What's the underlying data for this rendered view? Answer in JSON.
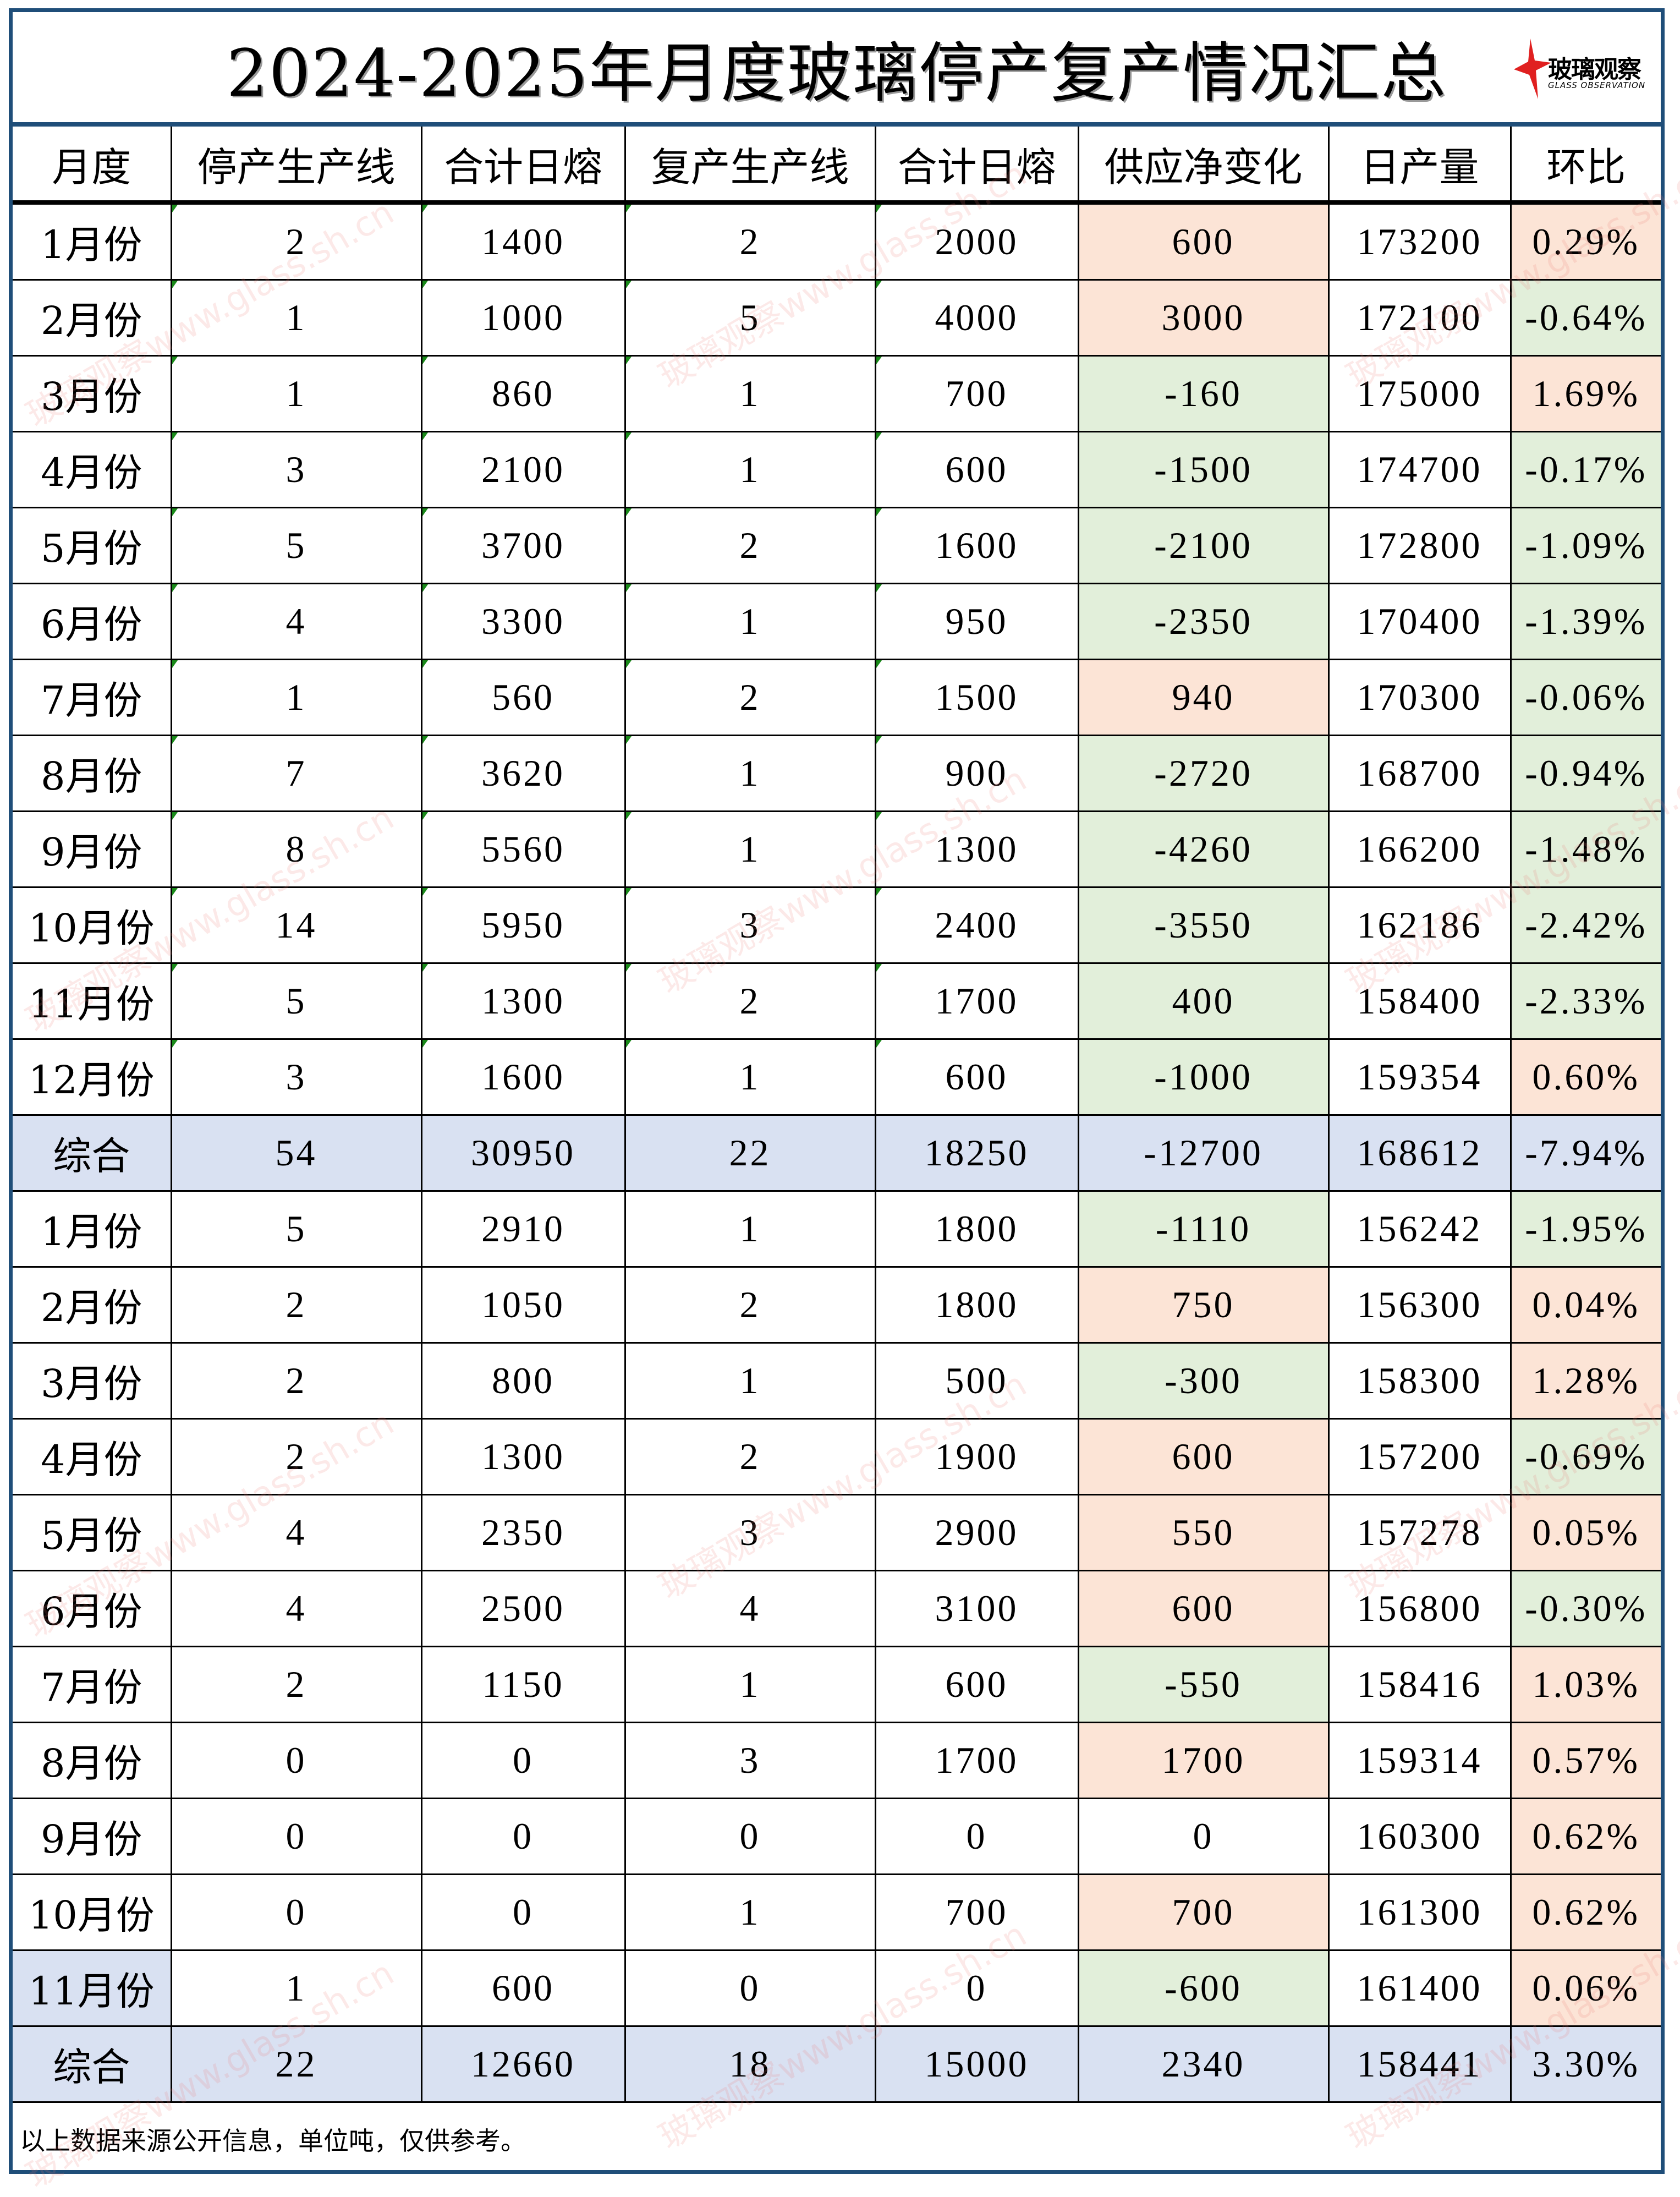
{
  "title": "2024-2025年月度玻璃停产复产情况汇总",
  "logo": {
    "brand": "玻璃观察",
    "sub": "GLASS OBSERVATION"
  },
  "watermark": "玻璃观察www.glass.sh.cn",
  "colors": {
    "frame": "#1f4e79",
    "peach": "#fce4d6",
    "green": "#e2efda",
    "total": "#d9e1f2",
    "none": "#ffffff",
    "logo_red": "#e02020"
  },
  "columns": [
    "月度",
    "停产生产线",
    "合计日熔",
    "复产生产线",
    "合计日熔",
    "供应净变化",
    "日产量",
    "环比"
  ],
  "rows": [
    {
      "cells": [
        "1月份",
        "2",
        "1400",
        "2",
        "2000",
        "600",
        "173200",
        "0.29%"
      ],
      "net_bg": "peach",
      "mom_bg": "peach",
      "marks": true
    },
    {
      "cells": [
        "2月份",
        "1",
        "1000",
        "5",
        "4000",
        "3000",
        "172100",
        "-0.64%"
      ],
      "net_bg": "peach",
      "mom_bg": "green",
      "marks": true
    },
    {
      "cells": [
        "3月份",
        "1",
        "860",
        "1",
        "700",
        "-160",
        "175000",
        "1.69%"
      ],
      "net_bg": "green",
      "mom_bg": "peach",
      "marks": true
    },
    {
      "cells": [
        "4月份",
        "3",
        "2100",
        "1",
        "600",
        "-1500",
        "174700",
        "-0.17%"
      ],
      "net_bg": "green",
      "mom_bg": "green",
      "marks": true
    },
    {
      "cells": [
        "5月份",
        "5",
        "3700",
        "2",
        "1600",
        "-2100",
        "172800",
        "-1.09%"
      ],
      "net_bg": "green",
      "mom_bg": "green",
      "marks": true
    },
    {
      "cells": [
        "6月份",
        "4",
        "3300",
        "1",
        "950",
        "-2350",
        "170400",
        "-1.39%"
      ],
      "net_bg": "green",
      "mom_bg": "green",
      "marks": true
    },
    {
      "cells": [
        "7月份",
        "1",
        "560",
        "2",
        "1500",
        "940",
        "170300",
        "-0.06%"
      ],
      "net_bg": "peach",
      "mom_bg": "green",
      "marks": true
    },
    {
      "cells": [
        "8月份",
        "7",
        "3620",
        "1",
        "900",
        "-2720",
        "168700",
        "-0.94%"
      ],
      "net_bg": "green",
      "mom_bg": "green",
      "marks": true
    },
    {
      "cells": [
        "9月份",
        "8",
        "5560",
        "1",
        "1300",
        "-4260",
        "166200",
        "-1.48%"
      ],
      "net_bg": "green",
      "mom_bg": "green",
      "marks": true
    },
    {
      "cells": [
        "10月份",
        "14",
        "5950",
        "3",
        "2400",
        "-3550",
        "162186",
        "-2.42%"
      ],
      "net_bg": "green",
      "mom_bg": "green",
      "marks": true
    },
    {
      "cells": [
        "11月份",
        "5",
        "1300",
        "2",
        "1700",
        "400",
        "158400",
        "-2.33%"
      ],
      "net_bg": "green",
      "mom_bg": "green",
      "marks": true
    },
    {
      "cells": [
        "12月份",
        "3",
        "1600",
        "1",
        "600",
        "-1000",
        "159354",
        "0.60%"
      ],
      "net_bg": "green",
      "mom_bg": "peach",
      "marks": true
    },
    {
      "cells": [
        "综合",
        "54",
        "30950",
        "22",
        "18250",
        "-12700",
        "168612",
        "-7.94%"
      ],
      "total": true
    },
    {
      "cells": [
        "1月份",
        "5",
        "2910",
        "1",
        "1800",
        "-1110",
        "156242",
        "-1.95%"
      ],
      "net_bg": "green",
      "mom_bg": "green"
    },
    {
      "cells": [
        "2月份",
        "2",
        "1050",
        "2",
        "1800",
        "750",
        "156300",
        "0.04%"
      ],
      "net_bg": "peach",
      "mom_bg": "peach"
    },
    {
      "cells": [
        "3月份",
        "2",
        "800",
        "1",
        "500",
        "-300",
        "158300",
        "1.28%"
      ],
      "net_bg": "green",
      "mom_bg": "peach"
    },
    {
      "cells": [
        "4月份",
        "2",
        "1300",
        "2",
        "1900",
        "600",
        "157200",
        "-0.69%"
      ],
      "net_bg": "peach",
      "mom_bg": "green"
    },
    {
      "cells": [
        "5月份",
        "4",
        "2350",
        "3",
        "2900",
        "550",
        "157278",
        "0.05%"
      ],
      "net_bg": "peach",
      "mom_bg": "peach"
    },
    {
      "cells": [
        "6月份",
        "4",
        "2500",
        "4",
        "3100",
        "600",
        "156800",
        "-0.30%"
      ],
      "net_bg": "peach",
      "mom_bg": "green"
    },
    {
      "cells": [
        "7月份",
        "2",
        "1150",
        "1",
        "600",
        "-550",
        "158416",
        "1.03%"
      ],
      "net_bg": "green",
      "mom_bg": "peach"
    },
    {
      "cells": [
        "8月份",
        "0",
        "0",
        "3",
        "1700",
        "1700",
        "159314",
        "0.57%"
      ],
      "net_bg": "peach",
      "mom_bg": "peach"
    },
    {
      "cells": [
        "9月份",
        "0",
        "0",
        "0",
        "0",
        "0",
        "160300",
        "0.62%"
      ],
      "net_bg": "none",
      "mom_bg": "peach"
    },
    {
      "cells": [
        "10月份",
        "0",
        "0",
        "1",
        "700",
        "700",
        "161300",
        "0.62%"
      ],
      "net_bg": "peach",
      "mom_bg": "peach"
    },
    {
      "cells": [
        "11月份",
        "1",
        "600",
        "0",
        "0",
        "-600",
        "161400",
        "0.06%"
      ],
      "net_bg": "green",
      "mom_bg": "peach",
      "month_bg": "total"
    },
    {
      "cells": [
        "综合",
        "22",
        "12660",
        "18",
        "15000",
        "2340",
        "158441",
        "3.30%"
      ],
      "total": true
    }
  ],
  "footer": "以上数据来源公开信息，单位吨，仅供参考。"
}
